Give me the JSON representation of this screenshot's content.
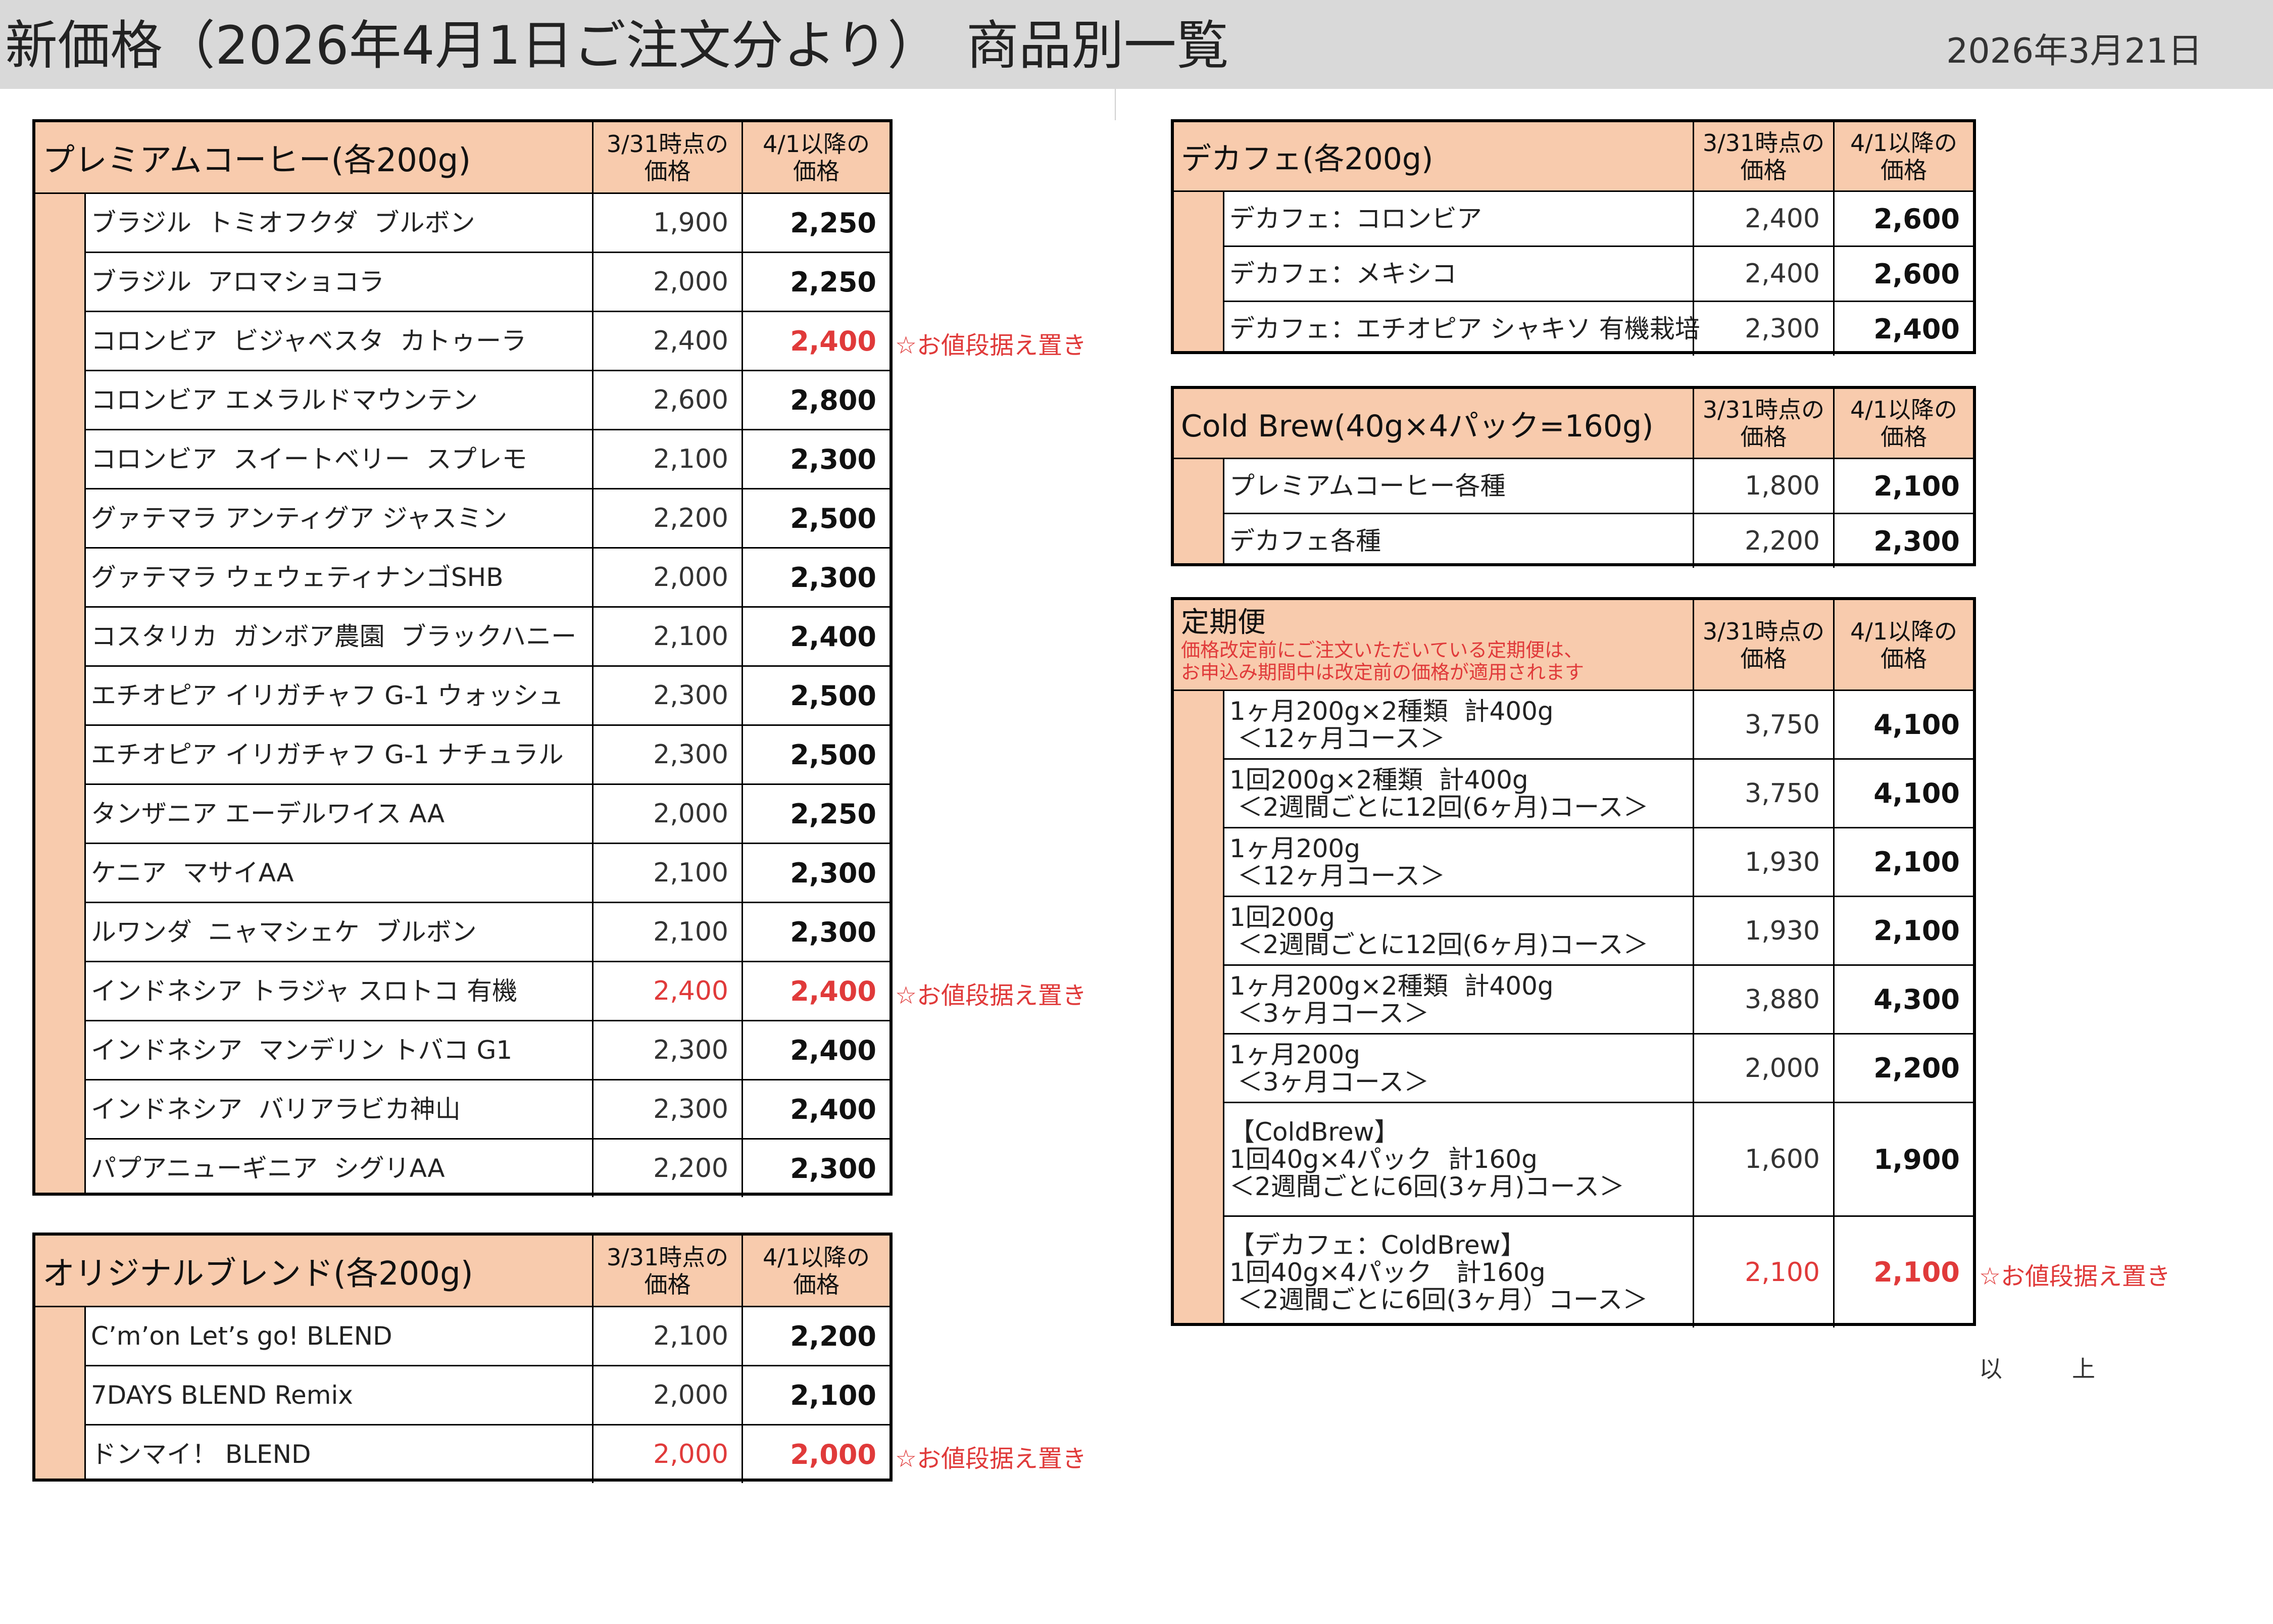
{
  "header": {
    "title": "新価格（2026年4月1日ご注文分より）　商品別一覧",
    "date": "2026年3月21日"
  },
  "columns": {
    "old_price": [
      "3/31時点の",
      "価格"
    ],
    "new_price": [
      "4/1以降の",
      "価格"
    ]
  },
  "premium": {
    "title": "プレミアムコーヒー(各200g)",
    "rows": [
      {
        "name": "ブラジル  トミオフクダ  ブルボン",
        "old": "1,900",
        "new": "2,250"
      },
      {
        "name": "ブラジル  アロマショコラ",
        "old": "2,000",
        "new": "2,250"
      },
      {
        "name": "コロンビア  ビジャベスタ  カトゥーラ",
        "old": "2,400",
        "new": "2,400",
        "new_red": true,
        "note": "☆お値段据え置き"
      },
      {
        "name": "コロンビア エメラルドマウンテン",
        "old": "2,600",
        "new": "2,800"
      },
      {
        "name": "コロンビア  スイートベリー  スプレモ",
        "old": "2,100",
        "new": "2,300"
      },
      {
        "name": "グァテマラ アンティグア ジャスミン",
        "old": "2,200",
        "new": "2,500"
      },
      {
        "name": "グァテマラ ウェウェティナンゴSHB",
        "old": "2,000",
        "new": "2,300"
      },
      {
        "name": "コスタリカ  ガンボア農園  ブラックハニー",
        "old": "2,100",
        "new": "2,400"
      },
      {
        "name": "エチオピア イリガチャフ G-1 ウォッシュ",
        "old": "2,300",
        "new": "2,500"
      },
      {
        "name": "エチオピア イリガチャフ G-1 ナチュラル",
        "old": "2,300",
        "new": "2,500"
      },
      {
        "name": "タンザニア エーデルワイス AA",
        "old": "2,000",
        "new": "2,250"
      },
      {
        "name": "ケニア  マサイAA",
        "old": "2,100",
        "new": "2,300"
      },
      {
        "name": "ルワンダ  ニャマシェケ  ブルボン",
        "old": "2,100",
        "new": "2,300"
      },
      {
        "name": "インドネシア トラジャ スロトコ 有機",
        "old": "2,400",
        "new": "2,400",
        "old_red": true,
        "new_red": true,
        "note": "☆お値段据え置き"
      },
      {
        "name": "インドネシア  マンデリン トバコ G1",
        "old": "2,300",
        "new": "2,400"
      },
      {
        "name": "インドネシア  バリアラビカ神山",
        "old": "2,300",
        "new": "2,400"
      },
      {
        "name": "パプアニューギニア  シグリAA",
        "old": "2,200",
        "new": "2,300"
      }
    ]
  },
  "blend": {
    "title": "オリジナルブレンド(各200g)",
    "rows": [
      {
        "name": "C’m’on Let’s go! BLEND",
        "old": "2,100",
        "new": "2,200"
      },
      {
        "name": "7DAYS BLEND Remix",
        "old": "2,000",
        "new": "2,100"
      },
      {
        "name": "ドンマイ！ BLEND",
        "old": "2,000",
        "new": "2,000",
        "old_red": true,
        "new_red": true,
        "note": "☆お値段据え置き"
      }
    ]
  },
  "decaf": {
    "title": "デカフェ(各200g)",
    "rows": [
      {
        "name": "デカフェ：コロンビア",
        "old": "2,400",
        "new": "2,600"
      },
      {
        "name": "デカフェ：メキシコ",
        "old": "2,400",
        "new": "2,600"
      },
      {
        "name": "デカフェ：エチオピア シャキソ 有機栽培",
        "old": "2,300",
        "new": "2,400"
      }
    ]
  },
  "coldbrew": {
    "title": "Cold Brew(40g×4パック=160g)",
    "rows": [
      {
        "name": "プレミアムコーヒー各種",
        "old": "1,800",
        "new": "2,100"
      },
      {
        "name": "デカフェ各種",
        "old": "2,200",
        "new": "2,300"
      }
    ]
  },
  "subscription": {
    "title": "定期便",
    "note_lines": [
      "価格改定前にご注文いただいている定期便は、",
      "お申込み期間中は改定前の価格が適用されます"
    ],
    "rows": [
      {
        "name": "1ヶ月200g×2種類  計400g\n ＜12ヶ月コース＞",
        "old": "3,750",
        "new": "4,100"
      },
      {
        "name": "1回200g×2種類  計400g\n ＜2週間ごとに12回(6ヶ月)コース＞",
        "old": "3,750",
        "new": "4,100"
      },
      {
        "name": "1ヶ月200g\n ＜12ヶ月コース＞",
        "old": "1,930",
        "new": "2,100"
      },
      {
        "name": "1回200g\n ＜2週間ごとに12回(6ヶ月)コース＞",
        "old": "1,930",
        "new": "2,100"
      },
      {
        "name": "1ヶ月200g×2種類  計400g\n ＜3ヶ月コース＞",
        "old": "3,880",
        "new": "4,300"
      },
      {
        "name": "1ヶ月200g\n ＜3ヶ月コース＞",
        "old": "2,000",
        "new": "2,200"
      },
      {
        "name": "【ColdBrew】\n1回40g×4パック  計160g\n＜2週間ごとに6回(3ヶ月)コース＞",
        "old": "1,600",
        "new": "1,900"
      },
      {
        "name": "【デカフェ：ColdBrew】\n1回40g×4パック   計160g\n ＜2週間ごとに6回(3ヶ月）コース＞",
        "old": "2,100",
        "new": "2,100",
        "old_red": true,
        "new_red": true,
        "note": "☆お値段据え置き"
      }
    ]
  },
  "end_mark": "以　　　上"
}
